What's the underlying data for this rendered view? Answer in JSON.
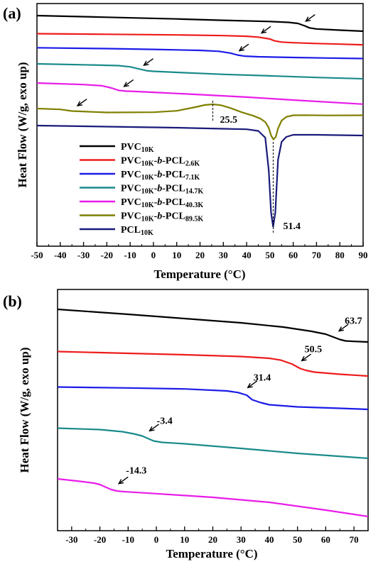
{
  "chart_data": [
    {
      "panel": "(a)",
      "type": "line",
      "xlabel": "Temperature (°C)",
      "ylabel": "Heat Flow (W/g, exo up)",
      "xlim": [
        -50,
        90
      ],
      "xticks": [
        -50,
        -40,
        -30,
        -20,
        -10,
        0,
        10,
        20,
        30,
        40,
        50,
        60,
        70,
        80,
        90
      ],
      "legend_placement": "lower-left",
      "series": [
        {
          "name": "PVC10K",
          "label_main": "PVC",
          "label_sub": "10K",
          "color": "#000000",
          "x": [
            -50,
            -20,
            10,
            30,
            50,
            58,
            62,
            65,
            67,
            70,
            80,
            90
          ],
          "y": [
            22,
            24.3,
            26.7,
            28.6,
            30.3,
            31.5,
            33,
            36.5,
            39.3,
            40.8,
            42.5,
            44
          ]
        },
        {
          "name": "PVC10K-b-PCL2.6K",
          "label_main": "PVC10K-b-PCL2.6K",
          "label_sub": "",
          "color": "#ee1c1c",
          "x": [
            -50,
            -20,
            10,
            30,
            40,
            45,
            50,
            52,
            55,
            60,
            70,
            80,
            90
          ],
          "y": [
            47.5,
            48.3,
            49.2,
            50.2,
            51.1,
            52.3,
            55,
            57.6,
            59.3,
            60.2,
            61.3,
            62.2,
            63.2
          ]
        },
        {
          "name": "PVC10K-b-PCL7.1K",
          "label_main": "PVC10K-b-PCL7.1K",
          "label_sub": "",
          "color": "#1c1ce8",
          "x": [
            -50,
            -20,
            0,
            20,
            28,
            33,
            36,
            39,
            45,
            60,
            75,
            90
          ],
          "y": [
            67.3,
            68.5,
            69.6,
            71,
            72.3,
            74.8,
            77.5,
            79.1,
            80,
            81,
            81.8,
            82.5
          ]
        },
        {
          "name": "PVC10K-b-PCL14.7K",
          "label_main": "PVC10K-b-PCL14.7K",
          "label_sub": "",
          "color": "#1a8a8a",
          "x": [
            -50,
            -30,
            -15,
            -10,
            -6,
            -3,
            0,
            10,
            30,
            50,
            70,
            90
          ],
          "y": [
            90,
            91.3,
            92.5,
            94.2,
            97.3,
            99.6,
            100.5,
            102,
            104.8,
            106.9,
            109.2,
            111
          ]
        },
        {
          "name": "PVC10K-b-PCL40.3K",
          "label_main": "PVC10K-b-PCL40.3K",
          "label_sub": "",
          "color": "#e81ce8",
          "x": [
            -50,
            -30,
            -22,
            -18,
            -15,
            -12,
            -8,
            0,
            20,
            40,
            60,
            90
          ],
          "y": [
            117,
            119.2,
            120.9,
            124,
            127.3,
            128.4,
            128.9,
            130.1,
            133.4,
            136.9,
            141,
            146.8
          ]
        },
        {
          "name": "PVC10K-b-PCL89.5K",
          "label_main": "PVC10K-b-PCL89.5K",
          "label_sub": "",
          "color": "#7f7f00",
          "x": [
            -50,
            -40,
            -35,
            -20,
            0,
            10,
            18,
            22,
            25.5,
            29,
            33,
            38,
            43,
            46,
            48,
            49.5,
            50.5,
            51.5,
            52.5,
            53.5,
            55,
            57,
            60,
            65,
            75,
            90
          ],
          "y": [
            153,
            154.2,
            156.5,
            158.5,
            158.2,
            156.2,
            151,
            148,
            147,
            148.3,
            152.2,
            158.3,
            163.3,
            167.3,
            172,
            180,
            191,
            196.5,
            193,
            181,
            170,
            164.8,
            162.5,
            162.3,
            162.7,
            162.5
          ]
        },
        {
          "name": "PCL10K",
          "label_main": "PCL",
          "label_sub": "10K",
          "color": "#1a1a7a",
          "x": [
            -50,
            -20,
            10,
            30,
            40,
            45,
            48,
            49.5,
            50.5,
            51.4,
            52.3,
            53.5,
            55,
            57,
            60,
            70,
            90
          ],
          "y": [
            177,
            178.5,
            180,
            181.5,
            182.2,
            184.5,
            194,
            240,
            300,
            319.5,
            300,
            225,
            200,
            193,
            190,
            190,
            191
          ]
        }
      ],
      "legend_entries": [
        {
          "main": "PVC",
          "sub": "10K",
          "tail": "",
          "tailsub": ""
        },
        {
          "main": "PVC",
          "sub": "10K",
          "tail": "-b-PCL",
          "tailsub": "2.6K"
        },
        {
          "main": "PVC",
          "sub": "10K",
          "tail": "-b-PCL",
          "tailsub": "7.1K"
        },
        {
          "main": "PVC",
          "sub": "10K",
          "tail": "-b-PCL",
          "tailsub": "14.7K"
        },
        {
          "main": "PVC",
          "sub": "10K",
          "tail": "-b-PCL",
          "tailsub": "40.3K"
        },
        {
          "main": "PVC",
          "sub": "10K",
          "tail": "-b-PCL",
          "tailsub": "89.5K"
        },
        {
          "main": "PCL",
          "sub": "10K",
          "tail": "",
          "tailsub": ""
        }
      ],
      "annotations": [
        {
          "text": "25.5",
          "x": 25.5
        },
        {
          "text": "51.4",
          "x": 51.4
        }
      ],
      "arrows_at_x": [
        64.5,
        45.5,
        36,
        -5,
        -13.5,
        -33.5
      ]
    },
    {
      "panel": "(b)",
      "type": "line",
      "xlabel": "Temperature (°C)",
      "ylabel": "Heat Flow (W/g, exo up)",
      "xlim": [
        -35,
        75
      ],
      "xticks": [
        -30,
        -20,
        -10,
        0,
        10,
        20,
        30,
        40,
        50,
        60,
        70
      ],
      "series": [
        {
          "name": "PVC10K",
          "color": "#000000",
          "x": [
            -35,
            -10,
            10,
            30,
            45,
            55,
            60,
            63,
            65,
            67,
            70,
            75
          ],
          "y": [
            436,
            443,
            449,
            455,
            461,
            467,
            471,
            475.5,
            478.5,
            480.5,
            481.2,
            482
          ]
        },
        {
          "name": "PVC10K-b-PCL2.6K",
          "color": "#ee1c1c",
          "x": [
            -35,
            -10,
            10,
            30,
            40,
            44,
            48,
            51,
            53,
            56,
            65,
            75
          ],
          "y": [
            495.5,
            498,
            500,
            502.5,
            505,
            507.5,
            513,
            519.5,
            522,
            524.5,
            527.5,
            530
          ]
        },
        {
          "name": "PVC10K-b-PCL7.1K",
          "color": "#1c1ce8",
          "x": [
            -35,
            -10,
            10,
            25,
            29,
            32,
            34,
            37,
            40,
            50,
            65,
            75
          ],
          "y": [
            545.5,
            546.8,
            548.2,
            551,
            553.3,
            557,
            563.5,
            567.5,
            570.5,
            573.5,
            575.5,
            577
          ]
        },
        {
          "name": "PVC10K-b-PCL14.7K",
          "color": "#1a8a8a",
          "x": [
            -35,
            -20,
            -12,
            -8,
            -5,
            -3,
            -1,
            2,
            10,
            30,
            50,
            75
          ],
          "y": [
            603.5,
            605.5,
            608.5,
            611.5,
            614.5,
            618,
            621.5,
            623.5,
            625.5,
            632,
            639,
            646
          ]
        },
        {
          "name": "PVC10K-b-PCL40.3K",
          "color": "#e81ce8",
          "x": [
            -35,
            -28,
            -22,
            -20,
            -18,
            -16,
            -14,
            -12,
            -10,
            0,
            20,
            40,
            60,
            75
          ],
          "y": [
            675,
            678,
            681,
            683,
            686.5,
            690,
            692,
            692.8,
            693.3,
            695.8,
            701,
            708,
            719,
            728
          ]
        }
      ],
      "annotations": [
        {
          "text": "63.7",
          "x": 63.7
        },
        {
          "text": "50.5",
          "x": 50.5
        },
        {
          "text": "31.4",
          "x": 31.4
        },
        {
          "text": "-3.4",
          "x": -3.4
        },
        {
          "text": "-14.3",
          "x": -14.3
        }
      ]
    }
  ]
}
